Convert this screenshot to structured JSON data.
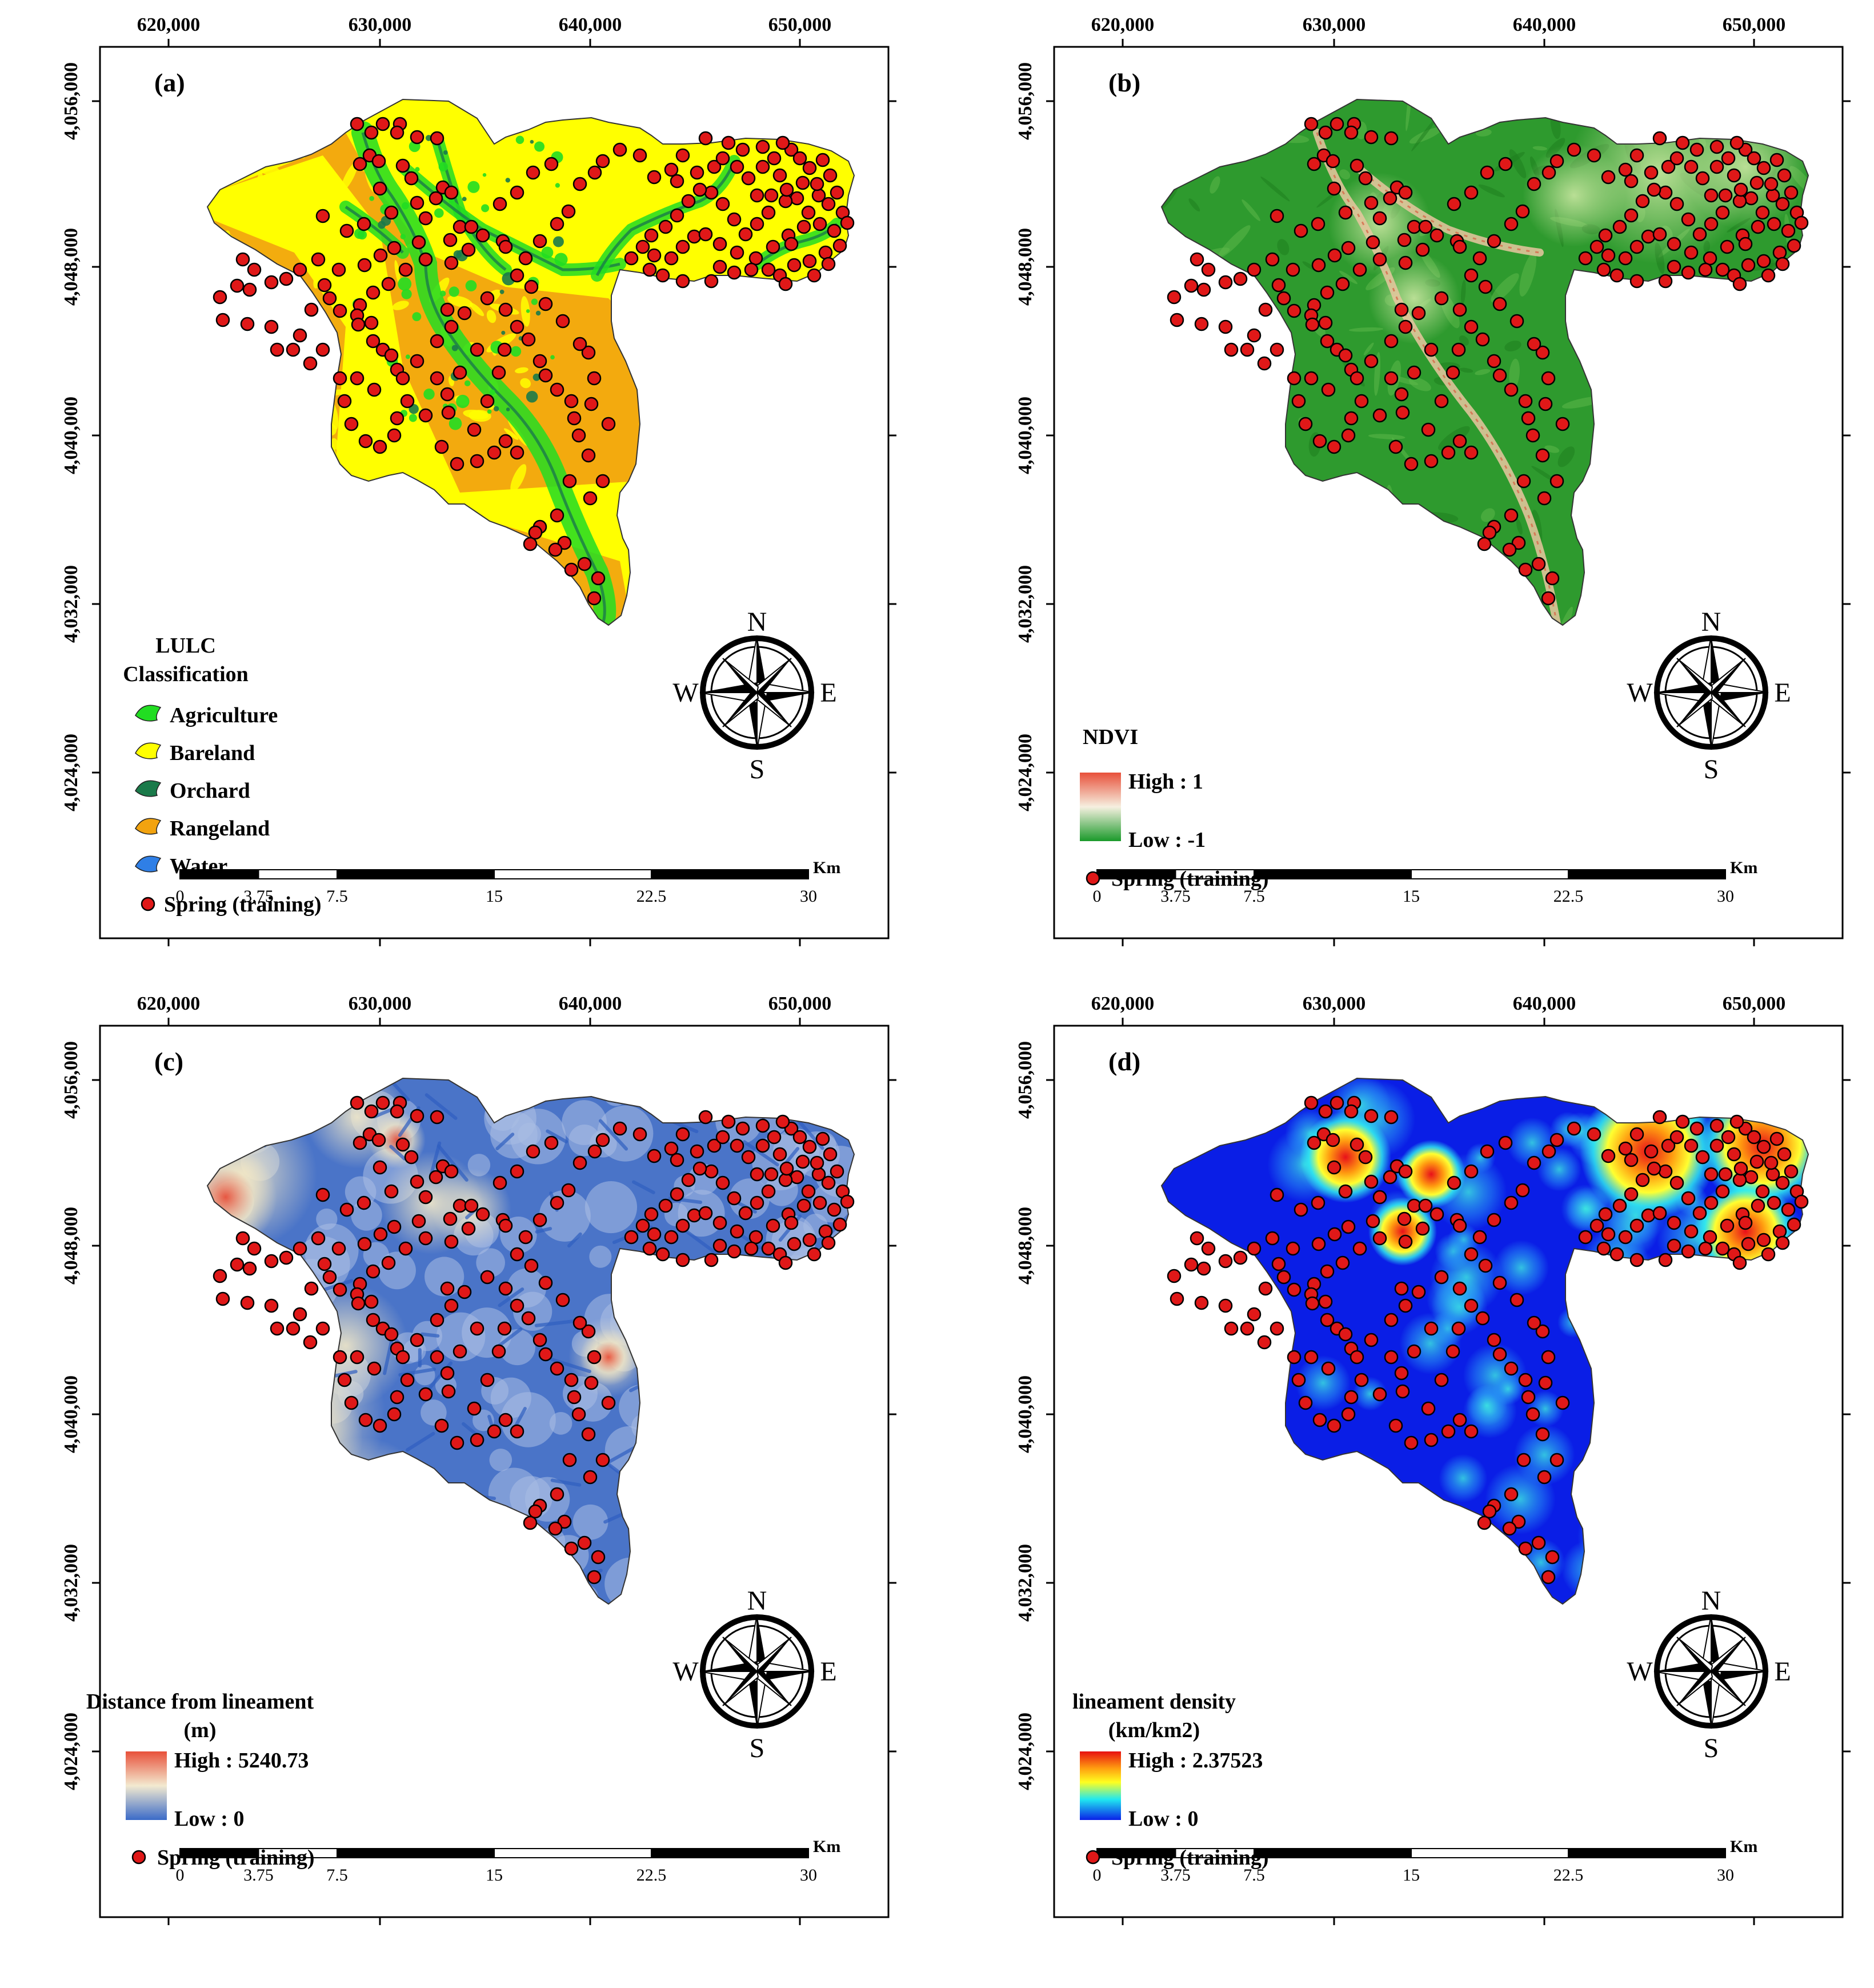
{
  "axis_labels": {
    "x": [
      "620,000",
      "630,000",
      "640,000",
      "650,000"
    ],
    "y": [
      "4,056,000",
      "4,048,000",
      "4,040,000",
      "4,032,000",
      "4,024,000"
    ]
  },
  "scalebar": {
    "unit": "Km",
    "ticks": [
      "0",
      "3.75",
      "7.5",
      "15",
      "22.5",
      "30"
    ]
  },
  "compass": {
    "n": "N",
    "s": "S",
    "e": "E",
    "w": "W"
  },
  "spring_label": "Spring (training)",
  "colors": {
    "spring_fill": "#e01818",
    "agriculture": "#22dd22",
    "bareland": "#ffff00",
    "orchard": "#1a7a4a",
    "rangeland": "#f2a30f",
    "water": "#2f7fe6",
    "ndvi_base": "#2e9a2e",
    "lineament_base": "#4a74c8",
    "density_base": "#0a1ee6"
  },
  "panels": [
    {
      "letter": "(a)",
      "legend_title": [
        "LULC",
        "Classification"
      ],
      "legend_items": [
        "Agriculture",
        "Bareland",
        "Orchard",
        "Rangeland",
        "Water"
      ]
    },
    {
      "letter": "(b)",
      "legend_title": [
        "NDVI"
      ],
      "high": "High : 1",
      "low": "Low : -1"
    },
    {
      "letter": "(c)",
      "legend_title": [
        "Distance from lineament",
        "(m)"
      ],
      "high": "High : 5240.73",
      "low": "Low : 0"
    },
    {
      "letter": "(d)",
      "legend_title": [
        "lineament density",
        "(km/km2)"
      ],
      "high": "High : 2.37523",
      "low": "Low : 0"
    }
  ]
}
